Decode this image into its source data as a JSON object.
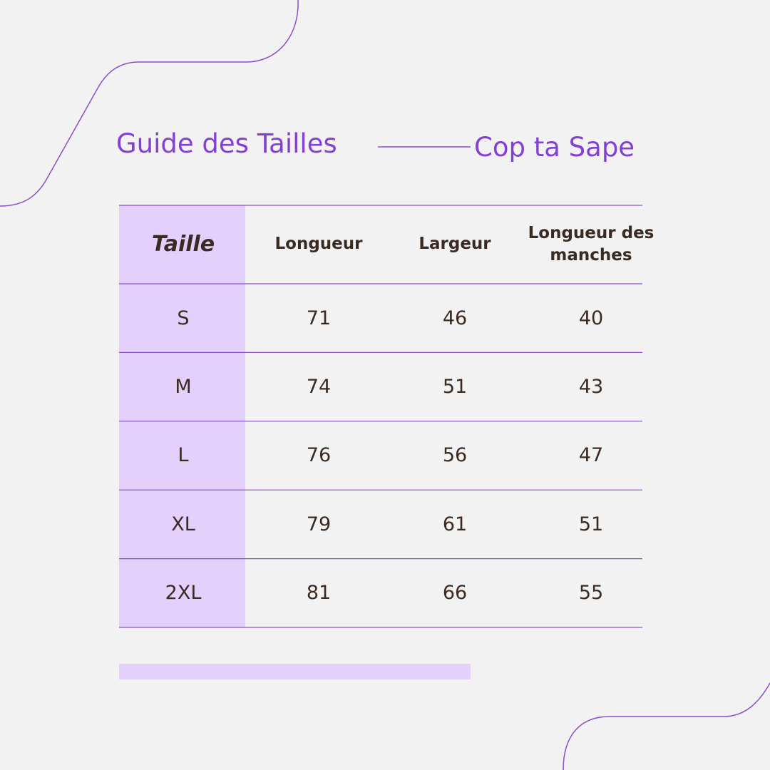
{
  "header": {
    "title": "Guide des Tailles",
    "brand": "Cop ta Sape"
  },
  "table": {
    "columns": [
      "Taille",
      "Longueur",
      "Largeur",
      "Longueur des manches"
    ],
    "rows": [
      [
        "S",
        71,
        46,
        40
      ],
      [
        "M",
        74,
        51,
        43
      ],
      [
        "L",
        76,
        56,
        47
      ],
      [
        "XL",
        79,
        61,
        51
      ],
      [
        "2XL",
        81,
        66,
        55
      ]
    ]
  }
}
